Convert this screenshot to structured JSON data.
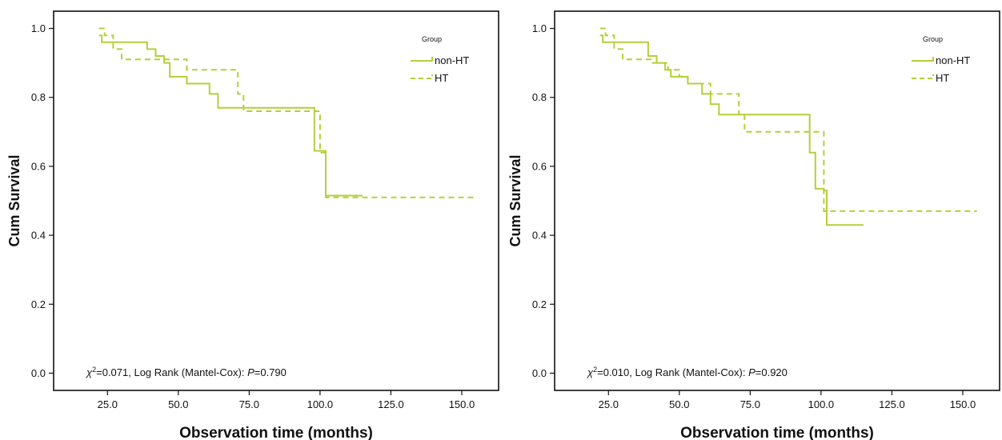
{
  "chart_data": [
    {
      "type": "line",
      "xlabel": "Observation time (months)",
      "ylabel": "Cum Survival",
      "xticks": [
        "25.0",
        "50.0",
        "75.0",
        "100.0",
        "125.0",
        "150.0"
      ],
      "yticks": [
        "0.0",
        "0.2",
        "0.4",
        "0.6",
        "0.8",
        "1.0"
      ],
      "xlim": [
        6,
        163
      ],
      "ylim": [
        -0.05,
        1.05
      ],
      "grid": false,
      "legend": {
        "title": "Group",
        "placement": "top-right",
        "entries": [
          {
            "label": "non-HT",
            "style": "solid"
          },
          {
            "label": "HT",
            "style": "dashed"
          }
        ]
      },
      "annotation": {
        "chi": "χ",
        "sup": "2",
        "value": "=0.071, Log Rank (Mantel-Cox): ",
        "p_label": "P",
        "p_value": "=0.790"
      },
      "series": [
        {
          "name": "non-HT",
          "style": "solid",
          "color": "#b5cf3a",
          "x": [
            22,
            23,
            23,
            39,
            39,
            42,
            42,
            45,
            45,
            47,
            47,
            53,
            53,
            61,
            61,
            64,
            64,
            98,
            98,
            102,
            102,
            115
          ],
          "y": [
            0.98,
            0.98,
            0.96,
            0.96,
            0.94,
            0.94,
            0.92,
            0.92,
            0.9,
            0.9,
            0.86,
            0.86,
            0.84,
            0.84,
            0.81,
            0.81,
            0.77,
            0.77,
            0.645,
            0.645,
            0.515,
            0.515
          ]
        },
        {
          "name": "HT",
          "style": "dashed",
          "color": "#b5cf3a",
          "x": [
            22,
            24,
            24,
            27,
            27,
            30,
            30,
            48,
            48,
            53,
            53,
            71,
            71,
            73,
            73,
            100,
            100,
            102,
            102,
            155
          ],
          "y": [
            1.0,
            1.0,
            0.98,
            0.98,
            0.94,
            0.94,
            0.91,
            0.91,
            0.91,
            0.91,
            0.88,
            0.88,
            0.81,
            0.81,
            0.76,
            0.76,
            0.64,
            0.64,
            0.51,
            0.51
          ]
        }
      ]
    },
    {
      "type": "line",
      "xlabel": "Observation time (months)",
      "ylabel": "Cum Survival",
      "xticks": [
        "25.0",
        "50.0",
        "75.0",
        "100.0",
        "125.0",
        "150.0"
      ],
      "yticks": [
        "0.0",
        "0.2",
        "0.4",
        "0.6",
        "0.8",
        "1.0"
      ],
      "xlim": [
        6,
        163
      ],
      "ylim": [
        -0.05,
        1.05
      ],
      "grid": false,
      "legend": {
        "title": "Group",
        "placement": "top-right",
        "entries": [
          {
            "label": "non-HT",
            "style": "solid"
          },
          {
            "label": "HT",
            "style": "dashed"
          }
        ]
      },
      "annotation": {
        "chi": "χ",
        "sup": "2",
        "value": "=0.010, Log Rank (Mantel-Cox): ",
        "p_label": "P",
        "p_value": "=0.920"
      },
      "series": [
        {
          "name": "non-HT",
          "style": "solid",
          "color": "#b5cf3a",
          "x": [
            22,
            23,
            23,
            39,
            39,
            42,
            42,
            45,
            45,
            47,
            47,
            53,
            53,
            58,
            58,
            61,
            61,
            64,
            64,
            96,
            96,
            98,
            98,
            101,
            101,
            102,
            102,
            115
          ],
          "y": [
            0.98,
            0.98,
            0.96,
            0.96,
            0.92,
            0.92,
            0.9,
            0.9,
            0.88,
            0.88,
            0.86,
            0.86,
            0.84,
            0.84,
            0.81,
            0.81,
            0.78,
            0.78,
            0.75,
            0.75,
            0.64,
            0.64,
            0.535,
            0.535,
            0.53,
            0.53,
            0.43,
            0.43
          ]
        },
        {
          "name": "HT",
          "style": "dashed",
          "color": "#b5cf3a",
          "x": [
            22,
            24,
            24,
            27,
            27,
            30,
            30,
            40,
            40,
            46,
            46,
            50,
            50,
            53,
            53,
            61,
            61,
            71,
            71,
            73,
            73,
            101,
            101,
            155
          ],
          "y": [
            1.0,
            1.0,
            0.98,
            0.98,
            0.94,
            0.94,
            0.91,
            0.91,
            0.9,
            0.9,
            0.88,
            0.88,
            0.86,
            0.86,
            0.84,
            0.84,
            0.81,
            0.81,
            0.75,
            0.75,
            0.7,
            0.7,
            0.47,
            0.47
          ]
        }
      ]
    }
  ]
}
